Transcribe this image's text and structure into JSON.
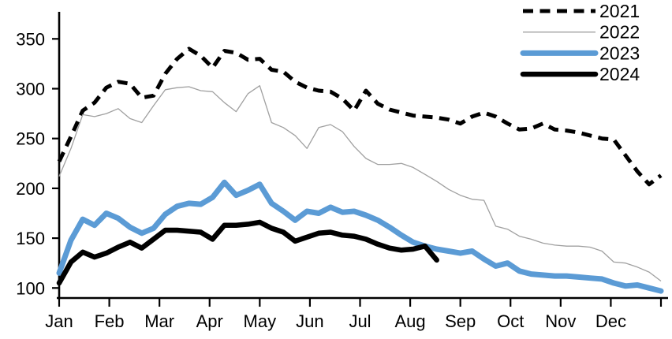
{
  "chart_data": {
    "type": "line",
    "title": "",
    "x_axis": {
      "unit": "month",
      "tick_labels": [
        "Jan",
        "Feb",
        "Mar",
        "Apr",
        "May",
        "Jun",
        "Jul",
        "Aug",
        "Sep",
        "Oct",
        "Nov",
        "Dec"
      ],
      "points_per_year": "weekly"
    },
    "y_axis": {
      "ticks": [
        "100",
        "150",
        "200",
        "250",
        "300",
        "350"
      ],
      "tick_values": [
        100,
        150,
        200,
        250,
        300,
        350
      ],
      "range": [
        90,
        377
      ],
      "grid": false
    },
    "legend": {
      "position": "top-right",
      "entries": [
        "2021",
        "2022",
        "2023",
        "2024"
      ]
    },
    "colors": {
      "black": "#000000",
      "gray": "#a0a0a0",
      "blue": "#5b9bd5"
    },
    "series": [
      {
        "name": "2021",
        "color": "#000000",
        "style": "dashed",
        "stroke_width": 5,
        "values": [
          227,
          252,
          278,
          286,
          301,
          307,
          305,
          291,
          293,
          315,
          330,
          340,
          333,
          321,
          338,
          336,
          329,
          330,
          319,
          317,
          307,
          301,
          298,
          297,
          290,
          278,
          298,
          285,
          279,
          276,
          273,
          272,
          271,
          269,
          265,
          272,
          276,
          272,
          265,
          259,
          260,
          265,
          259,
          258,
          256,
          253,
          250,
          249,
          233,
          217,
          204,
          213
        ]
      },
      {
        "name": "2022",
        "color": "#a0a0a0",
        "style": "solid",
        "stroke_width": 1.3,
        "values": [
          212,
          240,
          274,
          272,
          275,
          280,
          270,
          266,
          283,
          299,
          301,
          302,
          298,
          297,
          286,
          277,
          295,
          303,
          266,
          261,
          253,
          240,
          261,
          264,
          257,
          242,
          230,
          224,
          224,
          225,
          221,
          214,
          207,
          199,
          193,
          189,
          188,
          162,
          159,
          152,
          149,
          145,
          143,
          142,
          142,
          141,
          137,
          126,
          125,
          121,
          116,
          107
        ]
      },
      {
        "name": "2023",
        "color": "#5b9bd5",
        "style": "solid",
        "stroke_width": 7,
        "values": [
          115,
          148,
          169,
          163,
          175,
          170,
          161,
          155,
          160,
          174,
          182,
          185,
          184,
          191,
          206,
          193,
          198,
          204,
          185,
          177,
          168,
          177,
          175,
          181,
          176,
          177,
          173,
          168,
          161,
          153,
          146,
          142,
          139,
          137,
          135,
          137,
          129,
          122,
          125,
          117,
          114,
          113,
          112,
          112,
          111,
          110,
          109,
          105,
          102,
          103,
          100,
          97
        ]
      },
      {
        "name": "2024",
        "color": "#000000",
        "style": "solid",
        "stroke_width": 6.5,
        "values": [
          105,
          126,
          136,
          131,
          135,
          141,
          146,
          140,
          149,
          158,
          158,
          157,
          156,
          149,
          163,
          163,
          164,
          166,
          160,
          156,
          147,
          151,
          155,
          156,
          153,
          152,
          149,
          144,
          140,
          138,
          139,
          142,
          128
        ]
      }
    ]
  }
}
